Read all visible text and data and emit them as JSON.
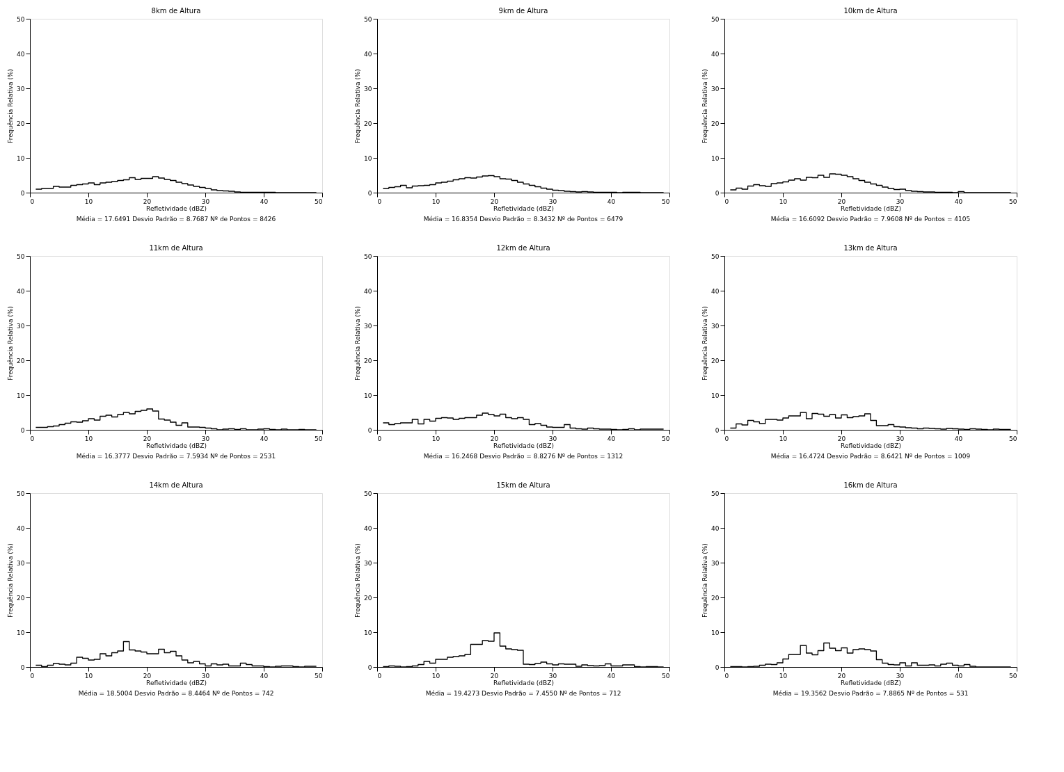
{
  "chart_data": [
    {
      "type": "histogram",
      "title": "8km de Altura",
      "xlabel": "Refletividade (dBZ)",
      "ylabel": "Frequência Relativa (%)",
      "annotations": [
        "Média =  17.6491   Desvio Padrão =   8.7687   Nº de Pontos =  8426"
      ],
      "xlim": [
        0,
        50
      ],
      "ylim": [
        0,
        50
      ],
      "xticks": [
        0,
        10,
        20,
        30,
        40,
        50
      ],
      "yticks": [
        0,
        10,
        20,
        30,
        40,
        50
      ],
      "color": "#000000",
      "grid": false,
      "bins": [
        1,
        2,
        3,
        4,
        5,
        6,
        7,
        8,
        9,
        10,
        11,
        12,
        13,
        14,
        15,
        16,
        17,
        18,
        19,
        20,
        21,
        22,
        23,
        24,
        25,
        26,
        27,
        28,
        29,
        30,
        31,
        32,
        33,
        34,
        35,
        36,
        37,
        38,
        39,
        40,
        41,
        42,
        43,
        44,
        45,
        46,
        47,
        48,
        49
      ],
      "values": [
        1.0,
        1.2,
        1.2,
        1.8,
        1.6,
        1.6,
        2.1,
        2.3,
        2.5,
        2.8,
        2.3,
        2.8,
        3.0,
        3.2,
        3.5,
        3.7,
        4.3,
        3.8,
        4.1,
        4.1,
        4.6,
        4.2,
        3.8,
        3.5,
        3.0,
        2.6,
        2.2,
        1.8,
        1.5,
        1.2,
        0.8,
        0.6,
        0.5,
        0.4,
        0.2,
        0.1,
        0.1,
        0.1,
        0.1,
        0.1,
        0.1,
        0.0,
        0.0,
        0.0,
        0.0,
        0.0,
        0.0,
        0.0
      ]
    },
    {
      "type": "histogram",
      "title": "9km de Altura",
      "xlabel": "Refletividade (dBZ)",
      "ylabel": "Frequência Relativa (%)",
      "annotations": [
        "Média =  16.8354   Desvio Padrão =   8.3432   Nº de Pontos =  6479"
      ],
      "xlim": [
        0,
        50
      ],
      "ylim": [
        0,
        50
      ],
      "xticks": [
        0,
        10,
        20,
        30,
        40,
        50
      ],
      "yticks": [
        0,
        10,
        20,
        30,
        40,
        50
      ],
      "color": "#000000",
      "grid": false,
      "bins": [
        1,
        2,
        3,
        4,
        5,
        6,
        7,
        8,
        9,
        10,
        11,
        12,
        13,
        14,
        15,
        16,
        17,
        18,
        19,
        20,
        21,
        22,
        23,
        24,
        25,
        26,
        27,
        28,
        29,
        30,
        31,
        32,
        33,
        34,
        35,
        36,
        37,
        38,
        39,
        40,
        41,
        42,
        43,
        44,
        45,
        46,
        47,
        48,
        49
      ],
      "values": [
        1.2,
        1.5,
        1.7,
        2.1,
        1.4,
        1.9,
        2.0,
        2.1,
        2.3,
        2.8,
        3.0,
        3.3,
        3.7,
        4.0,
        4.3,
        4.2,
        4.5,
        4.8,
        4.9,
        4.6,
        4.0,
        3.9,
        3.5,
        3.0,
        2.5,
        2.1,
        1.7,
        1.3,
        1.0,
        0.7,
        0.6,
        0.4,
        0.3,
        0.2,
        0.3,
        0.2,
        0.1,
        0.1,
        0.1,
        0.1,
        0.0,
        0.1,
        0.1,
        0.1,
        0.0,
        0.0,
        0.0,
        0.0
      ]
    },
    {
      "type": "histogram",
      "title": "10km de Altura",
      "xlabel": "Refletividade (dBZ)",
      "ylabel": "Frequência Relativa (%)",
      "annotations": [
        "Média =  16.6092   Desvio Padrão =   7.9608   Nº de Pontos =  4105"
      ],
      "xlim": [
        0,
        50
      ],
      "ylim": [
        0,
        50
      ],
      "xticks": [
        0,
        10,
        20,
        30,
        40,
        50
      ],
      "yticks": [
        0,
        10,
        20,
        30,
        40,
        50
      ],
      "color": "#000000",
      "grid": false,
      "bins": [
        1,
        2,
        3,
        4,
        5,
        6,
        7,
        8,
        9,
        10,
        11,
        12,
        13,
        14,
        15,
        16,
        17,
        18,
        19,
        20,
        21,
        22,
        23,
        24,
        25,
        26,
        27,
        28,
        29,
        30,
        31,
        32,
        33,
        34,
        35,
        36,
        37,
        38,
        39,
        40,
        41,
        42,
        43,
        44,
        45,
        46,
        47,
        48,
        49
      ],
      "values": [
        0.8,
        1.3,
        1.0,
        1.9,
        2.3,
        2.0,
        1.8,
        2.6,
        2.8,
        3.1,
        3.6,
        4.0,
        3.6,
        4.4,
        4.3,
        5.0,
        4.4,
        5.4,
        5.3,
        5.0,
        4.6,
        4.0,
        3.5,
        3.0,
        2.5,
        2.1,
        1.6,
        1.2,
        0.9,
        1.0,
        0.6,
        0.4,
        0.3,
        0.2,
        0.2,
        0.1,
        0.1,
        0.1,
        0.0,
        0.3,
        0.0,
        0.0,
        0.0,
        0.0,
        0.0,
        0.0,
        0.0,
        0.0
      ]
    },
    {
      "type": "histogram",
      "title": "11km de Altura",
      "xlabel": "Refletividade (dBZ)",
      "ylabel": "Frequência Relativa (%)",
      "annotations": [
        "Média =  16.3777   Desvio Padrão =   7.5934   Nº de Pontos =  2531"
      ],
      "xlim": [
        0,
        50
      ],
      "ylim": [
        0,
        50
      ],
      "xticks": [
        0,
        10,
        20,
        30,
        40,
        50
      ],
      "yticks": [
        0,
        10,
        20,
        30,
        40,
        50
      ],
      "color": "#000000",
      "grid": false,
      "bins": [
        1,
        2,
        3,
        4,
        5,
        6,
        7,
        8,
        9,
        10,
        11,
        12,
        13,
        14,
        15,
        16,
        17,
        18,
        19,
        20,
        21,
        22,
        23,
        24,
        25,
        26,
        27,
        28,
        29,
        30,
        31,
        32,
        33,
        34,
        35,
        36,
        37,
        38,
        39,
        40,
        41,
        42,
        43,
        44,
        45,
        46,
        47,
        48,
        49
      ],
      "values": [
        0.7,
        0.7,
        0.9,
        1.1,
        1.5,
        1.9,
        2.3,
        2.2,
        2.6,
        3.2,
        2.8,
        3.9,
        4.2,
        3.7,
        4.4,
        5.0,
        4.6,
        5.3,
        5.6,
        6.0,
        5.4,
        3.1,
        2.8,
        2.2,
        1.3,
        2.0,
        0.8,
        0.8,
        0.7,
        0.5,
        0.3,
        0.0,
        0.2,
        0.3,
        0.1,
        0.3,
        0.0,
        0.0,
        0.2,
        0.3,
        0.1,
        0.0,
        0.2,
        0.0,
        0.0,
        0.1,
        0.0,
        0.0
      ]
    },
    {
      "type": "histogram",
      "title": "12km de Altura",
      "xlabel": "Refletividade (dBZ)",
      "ylabel": "Frequência Relativa (%)",
      "annotations": [
        "Média =  16.2468   Desvio Padrão =   8.8276   Nº de Pontos =  1312"
      ],
      "xlim": [
        0,
        50
      ],
      "ylim": [
        0,
        50
      ],
      "xticks": [
        0,
        10,
        20,
        30,
        40,
        50
      ],
      "yticks": [
        0,
        10,
        20,
        30,
        40,
        50
      ],
      "color": "#000000",
      "grid": false,
      "bins": [
        1,
        2,
        3,
        4,
        5,
        6,
        7,
        8,
        9,
        10,
        11,
        12,
        13,
        14,
        15,
        16,
        17,
        18,
        19,
        20,
        21,
        22,
        23,
        24,
        25,
        26,
        27,
        28,
        29,
        30,
        31,
        32,
        33,
        34,
        35,
        36,
        37,
        38,
        39,
        40,
        41,
        42,
        43,
        44,
        45,
        46,
        47,
        48,
        49
      ],
      "values": [
        2.0,
        1.5,
        1.8,
        2.0,
        2.0,
        3.0,
        1.7,
        3.0,
        2.5,
        3.3,
        3.5,
        3.4,
        3.0,
        3.3,
        3.5,
        3.5,
        4.2,
        4.8,
        4.4,
        4.0,
        4.5,
        3.5,
        3.2,
        3.5,
        3.0,
        1.5,
        1.8,
        1.3,
        0.8,
        0.7,
        0.7,
        1.5,
        0.5,
        0.3,
        0.2,
        0.5,
        0.3,
        0.2,
        0.2,
        0.1,
        0.0,
        0.1,
        0.3,
        0.0,
        0.2,
        0.2,
        0.2,
        0.2
      ]
    },
    {
      "type": "histogram",
      "title": "13km de Altura",
      "xlabel": "Refletividade (dBZ)",
      "ylabel": "Frequência Relativa (%)",
      "annotations": [
        "Média =  16.4724   Desvio Padrão =   8.6421   Nº de Pontos =  1009"
      ],
      "xlim": [
        0,
        50
      ],
      "ylim": [
        0,
        50
      ],
      "xticks": [
        0,
        10,
        20,
        30,
        40,
        50
      ],
      "yticks": [
        0,
        10,
        20,
        30,
        40,
        50
      ],
      "color": "#000000",
      "grid": false,
      "bins": [
        1,
        2,
        3,
        4,
        5,
        6,
        7,
        8,
        9,
        10,
        11,
        12,
        13,
        14,
        15,
        16,
        17,
        18,
        19,
        20,
        21,
        22,
        23,
        24,
        25,
        26,
        27,
        28,
        29,
        30,
        31,
        32,
        33,
        34,
        35,
        36,
        37,
        38,
        39,
        40,
        41,
        42,
        43,
        44,
        45,
        46,
        47,
        48,
        49
      ],
      "values": [
        0.5,
        1.7,
        1.4,
        2.7,
        2.3,
        1.8,
        3.0,
        3.0,
        2.8,
        3.4,
        4.0,
        4.0,
        5.0,
        3.2,
        4.7,
        4.5,
        3.9,
        4.4,
        3.4,
        4.3,
        3.5,
        3.8,
        4.0,
        4.6,
        2.7,
        1.2,
        1.2,
        1.5,
        0.9,
        0.8,
        0.6,
        0.5,
        0.3,
        0.5,
        0.4,
        0.3,
        0.2,
        0.4,
        0.3,
        0.2,
        0.1,
        0.3,
        0.2,
        0.1,
        0.0,
        0.2,
        0.1,
        0.1
      ]
    },
    {
      "type": "histogram",
      "title": "14km de Altura",
      "xlabel": "Refletividade (dBZ)",
      "ylabel": "Frequência Relativa (%)",
      "annotations": [
        "Média =  18.5004   Desvio Padrão =   8.4464   Nº de Pontos =   742"
      ],
      "xlim": [
        0,
        50
      ],
      "ylim": [
        0,
        50
      ],
      "xticks": [
        0,
        10,
        20,
        30,
        40,
        50
      ],
      "yticks": [
        0,
        10,
        20,
        30,
        40,
        50
      ],
      "color": "#000000",
      "grid": false,
      "bins": [
        1,
        2,
        3,
        4,
        5,
        6,
        7,
        8,
        9,
        10,
        11,
        12,
        13,
        14,
        15,
        16,
        17,
        18,
        19,
        20,
        21,
        22,
        23,
        24,
        25,
        26,
        27,
        28,
        29,
        30,
        31,
        32,
        33,
        34,
        35,
        36,
        37,
        38,
        39,
        40,
        41,
        42,
        43,
        44,
        45,
        46,
        47,
        48,
        49
      ],
      "values": [
        0.5,
        0.1,
        0.5,
        1.0,
        0.8,
        0.6,
        1.1,
        2.8,
        2.5,
        2.0,
        2.2,
        3.8,
        3.2,
        4.1,
        4.6,
        7.3,
        4.9,
        4.6,
        4.3,
        3.8,
        3.8,
        5.1,
        4.1,
        4.5,
        3.2,
        2.0,
        1.2,
        1.6,
        0.9,
        0.3,
        0.9,
        0.6,
        0.8,
        0.3,
        0.3,
        1.1,
        0.7,
        0.3,
        0.3,
        0.1,
        0.0,
        0.2,
        0.3,
        0.3,
        0.1,
        0.0,
        0.2,
        0.2
      ]
    },
    {
      "type": "histogram",
      "title": "15km de Altura",
      "xlabel": "Refletividade (dBZ)",
      "ylabel": "Frequência Relativa (%)",
      "annotations": [
        "Média =  19.4273   Desvio Padrão =   7.4550   Nº de Pontos =   712"
      ],
      "xlim": [
        0,
        50
      ],
      "ylim": [
        0,
        50
      ],
      "xticks": [
        0,
        10,
        20,
        30,
        40,
        50
      ],
      "yticks": [
        0,
        10,
        20,
        30,
        40,
        50
      ],
      "color": "#000000",
      "grid": false,
      "bins": [
        1,
        2,
        3,
        4,
        5,
        6,
        7,
        8,
        9,
        10,
        11,
        12,
        13,
        14,
        15,
        16,
        17,
        18,
        19,
        20,
        21,
        22,
        23,
        24,
        25,
        26,
        27,
        28,
        29,
        30,
        31,
        32,
        33,
        34,
        35,
        36,
        37,
        38,
        39,
        40,
        41,
        42,
        43,
        44,
        45,
        46,
        47,
        48,
        49
      ],
      "values": [
        0.1,
        0.3,
        0.2,
        0.0,
        0.1,
        0.3,
        0.7,
        1.6,
        1.1,
        2.2,
        2.2,
        2.8,
        3.0,
        3.2,
        3.6,
        6.5,
        6.5,
        7.6,
        7.4,
        9.8,
        6.0,
        5.2,
        5.0,
        4.8,
        0.8,
        0.7,
        1.0,
        1.4,
        0.9,
        0.6,
        0.9,
        0.8,
        0.8,
        0.2,
        0.6,
        0.4,
        0.3,
        0.4,
        0.9,
        0.3,
        0.3,
        0.6,
        0.6,
        0.1,
        0.0,
        0.1,
        0.1,
        0.0
      ]
    },
    {
      "type": "histogram",
      "title": "16km de Altura",
      "xlabel": "Refletividade (dBZ)",
      "ylabel": "Frequência Relativa (%)",
      "annotations": [
        "Média =  19.3562   Desvio Padrão =   7.8865   Nº de Pontos =   531"
      ],
      "xlim": [
        0,
        50
      ],
      "ylim": [
        0,
        50
      ],
      "xticks": [
        0,
        10,
        20,
        30,
        40,
        50
      ],
      "yticks": [
        0,
        10,
        20,
        30,
        40,
        50
      ],
      "color": "#000000",
      "grid": false,
      "bins": [
        1,
        2,
        3,
        4,
        5,
        6,
        7,
        8,
        9,
        10,
        11,
        12,
        13,
        14,
        15,
        16,
        17,
        18,
        19,
        20,
        21,
        22,
        23,
        24,
        25,
        26,
        27,
        28,
        29,
        30,
        31,
        32,
        33,
        34,
        35,
        36,
        37,
        38,
        39,
        40,
        41,
        42,
        43,
        44,
        45,
        46,
        47,
        48,
        49
      ],
      "values": [
        0.1,
        0.1,
        0.0,
        0.1,
        0.2,
        0.5,
        0.8,
        0.7,
        1.2,
        2.3,
        3.6,
        3.6,
        6.2,
        4.0,
        3.5,
        4.7,
        6.9,
        5.4,
        4.7,
        5.5,
        4.0,
        5.0,
        5.2,
        5.0,
        4.6,
        2.1,
        1.1,
        0.7,
        0.6,
        1.2,
        0.3,
        1.2,
        0.5,
        0.5,
        0.6,
        0.3,
        0.8,
        1.1,
        0.5,
        0.3,
        0.7,
        0.2,
        0.0,
        0.0,
        0.0,
        0.0,
        0.0,
        0.0
      ]
    }
  ]
}
